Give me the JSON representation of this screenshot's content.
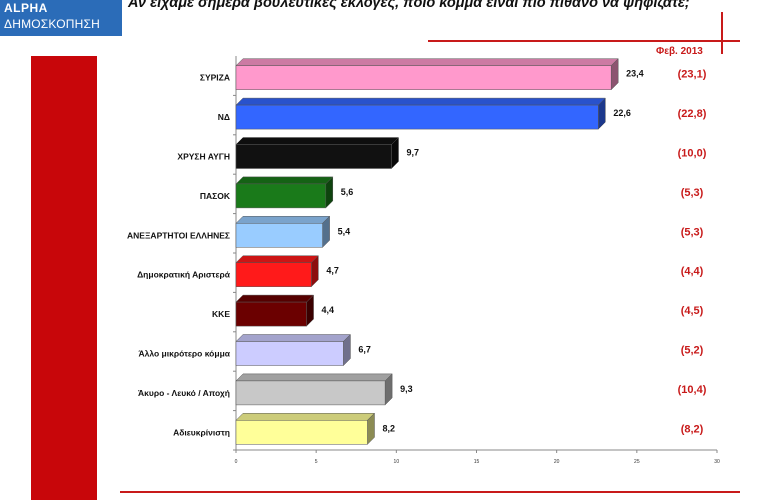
{
  "logo": {
    "line1": "ALPHA",
    "line2": "ΔΗΜΟΣΚΟΠΗΣΗ"
  },
  "header": {
    "question": "Αν είχαμε σήμερα βουλευτικές εκλογές, ποιο κόμμα είναι πιο πιθανό να ψηφίζατε;"
  },
  "comparison_label": "Φεβ. 2013",
  "colors": {
    "accent_red": "#c8060a",
    "logo_blue": "#2b6cb8",
    "previous_values": "#c81a1a"
  },
  "chart_data": {
    "type": "bar",
    "orientation": "horizontal",
    "title": "",
    "xlabel": "",
    "ylabel": "",
    "xlim": [
      0,
      30
    ],
    "x_ticks": [
      "0",
      "5",
      "10",
      "15",
      "20",
      "25",
      "30"
    ],
    "grid": false,
    "categories": [
      "ΣΥΡΙΖΑ",
      "ΝΔ",
      "ΧΡΥΣΗ ΑΥΓΗ",
      "ΠΑΣΟΚ",
      "ΑΝΕΞΑΡΤΗΤΟΙ ΕΛΛΗΝΕΣ",
      "Δημοκρατική Αριστερά",
      "ΚΚΕ",
      "Άλλο μικρότερο κόμμα",
      "Άκυρο - Λευκό / Αποχή",
      "Αδιευκρίνιστη"
    ],
    "values": [
      23.4,
      22.6,
      9.7,
      5.6,
      5.4,
      4.7,
      4.4,
      6.7,
      9.3,
      8.2
    ],
    "value_labels": [
      "23,4",
      "22,6",
      "9,7",
      "5,6",
      "5,4",
      "4,7",
      "4,4",
      "6,7",
      "9,3",
      "8,2"
    ],
    "bar_colors": [
      "#ff99cc",
      "#3366ff",
      "#111111",
      "#1a7a1a",
      "#99ccff",
      "#ff1a1a",
      "#6b0000",
      "#ccccff",
      "#c8c8c8",
      "#ffff99"
    ],
    "previous_label": "Φεβ. 2013",
    "previous_values": [
      "(23,1)",
      "(22,8)",
      "(10,0)",
      "(5,3)",
      "(5,3)",
      "(4,4)",
      "(4,5)",
      "(5,2)",
      "(10,4)",
      "(8,2)"
    ]
  }
}
